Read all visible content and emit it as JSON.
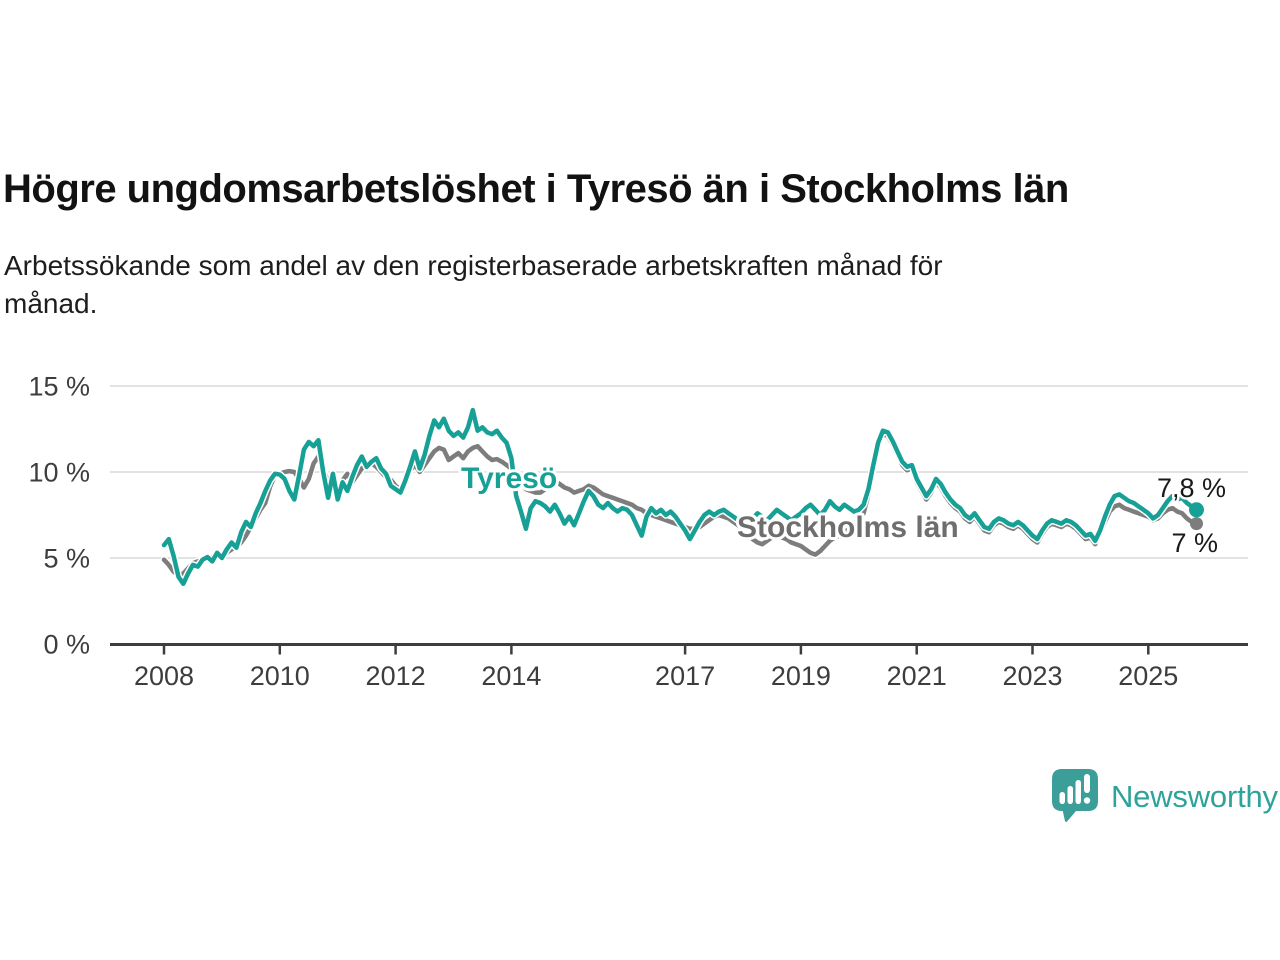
{
  "title": "Högre ungdomsarbetslöshet i Tyresö än i Stockholms län",
  "subtitle_lines": [
    "Arbetssökande som andel av den registerbaserade arbetskraften månad för",
    "månad."
  ],
  "chart_data": {
    "type": "line",
    "unit": "%",
    "x_domain": {
      "start_year": 2008,
      "start_month": 1,
      "end_year": 2025,
      "end_month": 11,
      "interval": "monthly"
    },
    "x_tick_years": [
      2008,
      2010,
      2012,
      2014,
      2017,
      2019,
      2021,
      2023,
      2025
    ],
    "y_ticks": [
      {
        "value": 15,
        "label": "15 %"
      },
      {
        "value": 10,
        "label": "10 %"
      },
      {
        "value": 5,
        "label": "5 %"
      },
      {
        "value": 0,
        "label": "0 %"
      }
    ],
    "ylim": [
      0,
      15.5
    ],
    "grid": true,
    "legend_position": "inline-labels",
    "series": [
      {
        "name": "Stockholms län",
        "color": "#7d7d7d",
        "label_color": "#6e6e6e",
        "end_label": "7 %",
        "end_value": 7.0,
        "values": [
          4.9,
          4.6,
          4.2,
          4.0,
          4.1,
          4.4,
          4.7,
          4.8,
          4.9,
          5.0,
          5.05,
          5.1,
          5.15,
          5.3,
          5.5,
          5.65,
          5.9,
          6.3,
          6.8,
          7.3,
          7.8,
          8.2,
          9.15,
          9.8,
          9.9,
          10.0,
          10.05,
          10.0,
          9.6,
          9.1,
          9.6,
          10.5,
          10.9,
          10.2,
          9.4,
          9.0,
          8.9,
          9.5,
          9.9,
          9.4,
          9.8,
          10.2,
          10.45,
          10.5,
          10.3,
          10.0,
          9.7,
          9.55,
          9.2,
          9.0,
          9.4,
          10.1,
          10.4,
          10.0,
          10.4,
          10.8,
          11.2,
          11.4,
          11.3,
          10.7,
          10.9,
          11.1,
          10.8,
          11.2,
          11.4,
          11.5,
          11.2,
          10.9,
          10.7,
          10.75,
          10.6,
          10.4,
          10.2,
          9.6,
          9.3,
          9.0,
          8.9,
          8.8,
          8.8,
          9.0,
          9.3,
          9.5,
          9.3,
          9.1,
          9.0,
          8.8,
          8.9,
          9.0,
          9.2,
          9.1,
          8.9,
          8.7,
          8.6,
          8.5,
          8.4,
          8.3,
          8.2,
          8.1,
          7.9,
          7.8,
          7.6,
          7.5,
          7.4,
          7.3,
          7.2,
          7.1,
          7.0,
          6.9,
          6.8,
          6.7,
          6.7,
          6.8,
          7.0,
          7.2,
          7.4,
          7.5,
          7.4,
          7.3,
          7.1,
          6.9,
          6.7,
          6.4,
          6.1,
          5.9,
          5.8,
          6.0,
          6.2,
          6.3,
          6.2,
          6.1,
          5.9,
          5.8,
          5.7,
          5.5,
          5.3,
          5.2,
          5.4,
          5.7,
          6.0,
          6.2,
          6.3,
          6.5,
          6.7,
          7.0,
          7.2,
          7.6,
          8.7,
          10.3,
          11.6,
          12.2,
          12.1,
          11.6,
          11.0,
          10.4,
          10.1,
          10.2,
          9.4,
          8.9,
          8.4,
          8.8,
          9.4,
          9.1,
          8.6,
          8.2,
          7.9,
          7.7,
          7.3,
          7.1,
          7.4,
          7.0,
          6.6,
          6.5,
          6.9,
          7.1,
          7.0,
          6.8,
          6.7,
          6.9,
          6.7,
          6.4,
          6.1,
          5.9,
          6.4,
          6.8,
          7.0,
          6.9,
          6.8,
          7.0,
          6.9,
          6.7,
          6.4,
          6.1,
          6.2,
          5.8,
          6.4,
          7.1,
          7.7,
          8.0,
          8.1,
          7.9,
          7.8,
          7.7,
          7.6,
          7.5,
          7.4,
          7.2,
          7.3,
          7.6,
          7.8,
          7.9,
          7.7,
          7.6,
          7.3,
          7.1,
          7.0
        ]
      },
      {
        "name": "Tyresö",
        "color": "#17a096",
        "label_color": "#17a096",
        "end_label": "7,8 %",
        "end_value": 7.8,
        "values": [
          5.75,
          6.1,
          5.1,
          3.9,
          3.5,
          4.1,
          4.6,
          4.5,
          4.9,
          5.05,
          4.8,
          5.3,
          5.0,
          5.5,
          5.9,
          5.6,
          6.5,
          7.1,
          6.8,
          7.6,
          8.2,
          8.9,
          9.5,
          9.9,
          9.85,
          9.6,
          8.9,
          8.4,
          9.8,
          11.3,
          11.75,
          11.5,
          11.85,
          10.0,
          8.5,
          9.9,
          8.4,
          9.4,
          8.9,
          9.7,
          10.4,
          10.9,
          10.3,
          10.6,
          10.8,
          10.2,
          9.9,
          9.2,
          9.0,
          8.8,
          9.5,
          10.3,
          11.2,
          10.2,
          11.0,
          12.1,
          13.0,
          12.6,
          13.1,
          12.4,
          12.1,
          12.3,
          12.0,
          12.6,
          13.6,
          12.4,
          12.6,
          12.3,
          12.2,
          12.4,
          12.0,
          11.7,
          10.8,
          8.6,
          7.7,
          6.7,
          7.9,
          8.3,
          8.2,
          8.0,
          7.7,
          8.1,
          7.6,
          7.0,
          7.4,
          6.9,
          7.6,
          8.3,
          8.9,
          8.6,
          8.1,
          7.9,
          8.2,
          7.9,
          7.7,
          7.9,
          7.8,
          7.5,
          6.9,
          6.3,
          7.4,
          7.9,
          7.6,
          7.8,
          7.5,
          7.7,
          7.4,
          7.0,
          6.6,
          6.1,
          6.6,
          7.1,
          7.5,
          7.7,
          7.5,
          7.7,
          7.8,
          7.6,
          7.4,
          7.2,
          7.4,
          7.1,
          7.3,
          7.6,
          7.4,
          7.2,
          7.5,
          7.8,
          7.6,
          7.4,
          7.2,
          7.4,
          7.6,
          7.9,
          8.1,
          7.8,
          7.5,
          7.8,
          8.3,
          8.0,
          7.8,
          8.1,
          7.9,
          7.7,
          7.8,
          8.1,
          9.0,
          10.4,
          11.7,
          12.4,
          12.3,
          11.8,
          11.2,
          10.6,
          10.3,
          10.4,
          9.6,
          9.1,
          8.6,
          9.0,
          9.6,
          9.3,
          8.8,
          8.4,
          8.1,
          7.9,
          7.5,
          7.3,
          7.6,
          7.2,
          6.8,
          6.7,
          7.1,
          7.3,
          7.2,
          7.0,
          6.9,
          7.1,
          6.9,
          6.6,
          6.3,
          6.1,
          6.6,
          7.0,
          7.2,
          7.1,
          7.0,
          7.2,
          7.1,
          6.9,
          6.6,
          6.3,
          6.4,
          6.0,
          6.6,
          7.4,
          8.1,
          8.6,
          8.7,
          8.5,
          8.3,
          8.2,
          8.0,
          7.8,
          7.6,
          7.3,
          7.5,
          7.9,
          8.3,
          8.6,
          8.4,
          8.5,
          8.2,
          8.0,
          7.8
        ]
      }
    ]
  },
  "branding": {
    "logo_text": "Newsworthy",
    "logo_color": "#3b9e98",
    "text_color": "#2ea39b"
  }
}
